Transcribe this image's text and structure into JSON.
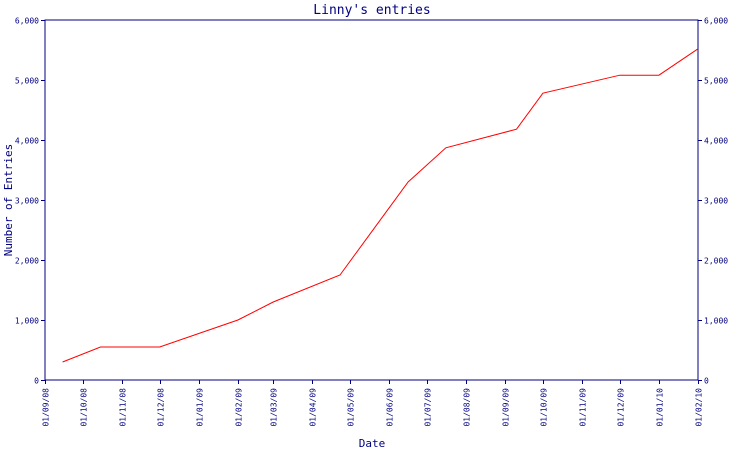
{
  "chart_data": {
    "type": "line",
    "title": "Linny's entries",
    "xlabel": "Date",
    "ylabel": "Number of Entries",
    "x_tick_labels": [
      "01/09/08",
      "01/10/08",
      "01/11/08",
      "01/12/08",
      "01/01/09",
      "01/02/09",
      "01/03/09",
      "01/04/09",
      "01/05/09",
      "01/06/09",
      "01/07/09",
      "01/08/09",
      "01/09/09",
      "01/10/09",
      "01/11/09",
      "01/12/09",
      "01/01/10",
      "01/02/10"
    ],
    "y_ticks": [
      0,
      1000,
      2000,
      3000,
      4000,
      5000,
      6000
    ],
    "y_tick_labels": [
      "0",
      "1,000",
      "2,000",
      "3,000",
      "4,000",
      "5,000",
      "6,000"
    ],
    "ylim": [
      0,
      6000
    ],
    "xlim": [
      "2008-09-01",
      "2010-02-01"
    ],
    "grid": false,
    "legend": "none",
    "colors": {
      "axis": "#000080",
      "line": "#ff0000",
      "text": "#000080"
    },
    "series": [
      {
        "x": [
          "2008-09-15",
          "2008-10-15",
          "2008-12-01",
          "2009-02-01",
          "2009-03-01",
          "2009-04-23",
          "2009-06-16",
          "2009-07-16",
          "2009-09-10",
          "2009-10-01",
          "2009-12-01",
          "2010-01-01",
          "2010-02-01"
        ],
        "y": [
          300,
          550,
          550,
          1000,
          1300,
          1750,
          3300,
          3870,
          4180,
          4780,
          5080,
          5080,
          5520
        ]
      }
    ]
  }
}
